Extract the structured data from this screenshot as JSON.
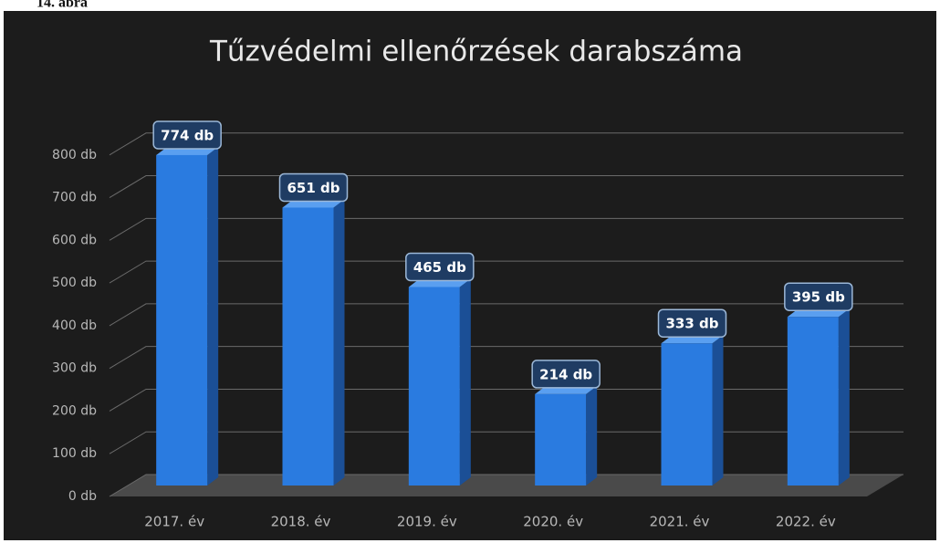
{
  "caption": "14. ábra",
  "chart_data": {
    "type": "bar",
    "title": "Tűzvédelmi ellenőrzések darabszáma",
    "categories": [
      "2017. év",
      "2018. év",
      "2019. év",
      "2020. év",
      "2021. év",
      "2022. év"
    ],
    "values": [
      774,
      651,
      465,
      214,
      333,
      395
    ],
    "value_labels": [
      "774 db",
      "651 db",
      "465 db",
      "214 db",
      "333 db",
      "395 db"
    ],
    "color": "#2a7be0",
    "ylim": [
      0,
      900
    ],
    "yticks": [
      {
        "value": 0,
        "label": "0 db"
      },
      {
        "value": 100,
        "label": "100 db"
      },
      {
        "value": 200,
        "label": "200 db"
      },
      {
        "value": 300,
        "label": "300 db"
      },
      {
        "value": 400,
        "label": "400 db"
      },
      {
        "value": 500,
        "label": "500 db"
      },
      {
        "value": 600,
        "label": "600 db"
      },
      {
        "value": 700,
        "label": "700 db"
      },
      {
        "value": 800,
        "label": "800 db"
      }
    ],
    "grid": true
  }
}
